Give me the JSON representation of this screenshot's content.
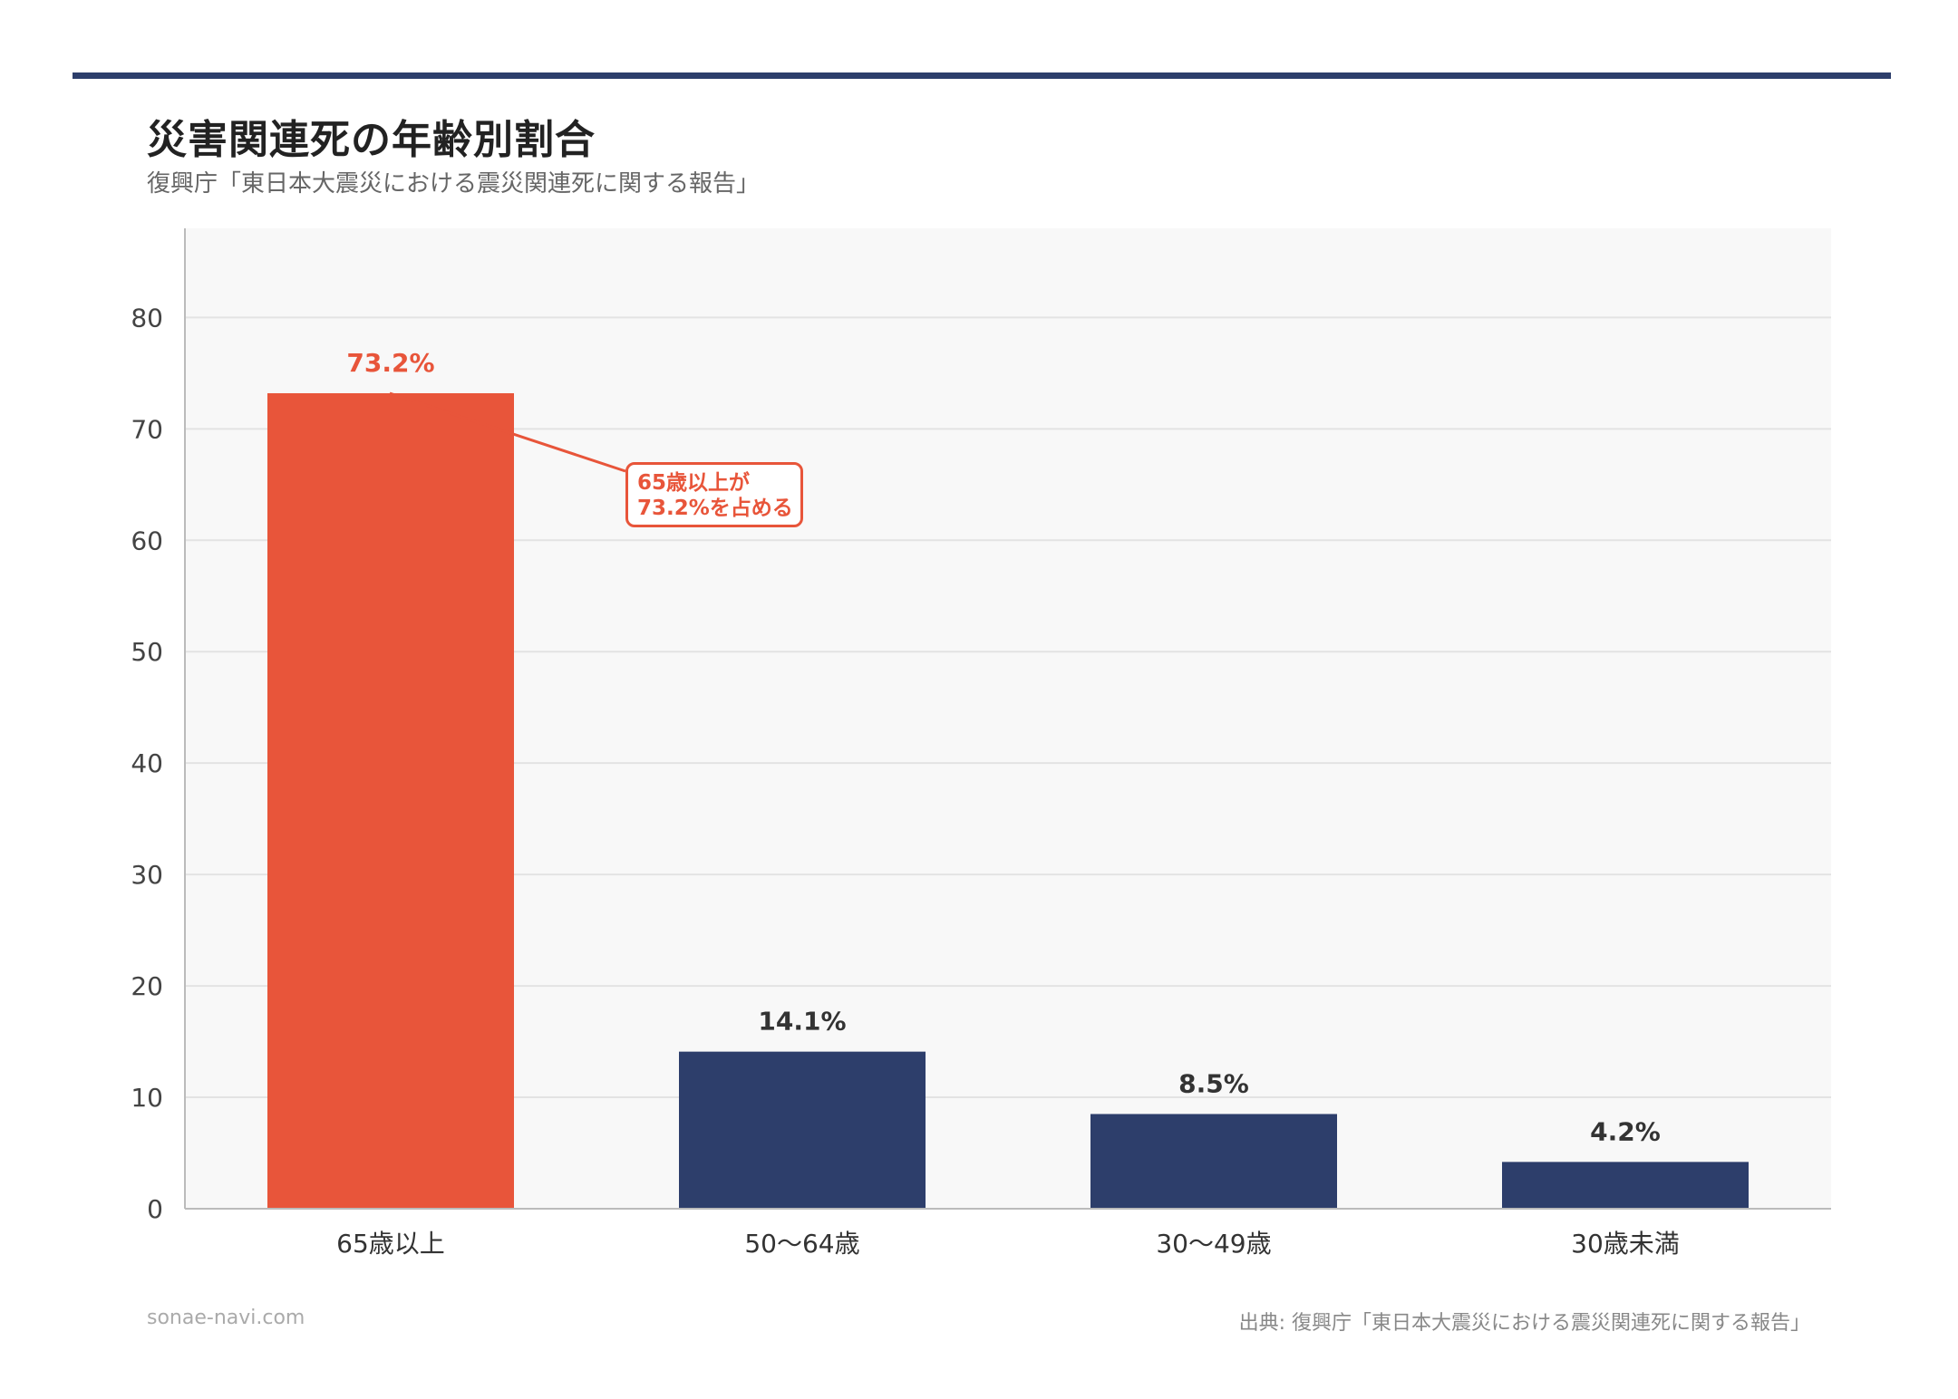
{
  "header": {
    "title": "災害関連死の年齢別割合",
    "subtitle": "復興庁「東日本大震災における震災関連死に関する報告」"
  },
  "chart_data": {
    "type": "bar",
    "categories": [
      "65歳以上",
      "50〜64歳",
      "30〜49歳",
      "30歳未満"
    ],
    "values": [
      73.2,
      14.1,
      8.5,
      4.2
    ],
    "value_labels": [
      "73.2%",
      "14.1%",
      "8.5%",
      "4.2%"
    ],
    "bar_colors": [
      "#e8553a",
      "#2d3e6b",
      "#2d3e6b",
      "#2d3e6b"
    ],
    "label_colors": [
      "#e8553a",
      "#333333",
      "#333333",
      "#333333"
    ],
    "title": "災害関連死の年齢別割合",
    "xlabel": "",
    "ylabel": "",
    "ylim": [
      0,
      88
    ],
    "yticks": [
      0,
      10,
      20,
      30,
      40,
      50,
      60,
      70,
      80
    ],
    "grid": true,
    "annotation": {
      "line1": "65歳以上が",
      "line2": "73.2%を占める"
    }
  },
  "footer": {
    "site": "sonae-navi.com",
    "source": "出典: 復興庁「東日本大震災における震災関連死に関する報告」"
  },
  "colors": {
    "accent": "#e8553a",
    "navy": "#2d3e6b",
    "plot_bg": "#f8f8f8"
  }
}
